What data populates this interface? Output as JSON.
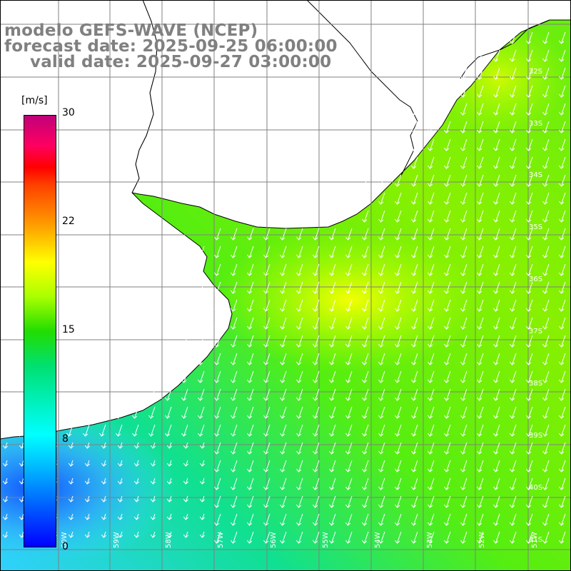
{
  "title": {
    "line1": "modelo GEFS-WAVE (NCEP)",
    "line2": "forecast date: 2025-09-25 06:00:00",
    "line3": "valid date: 2025-09-27 03:00:00"
  },
  "colorbar": {
    "unit": "[m/s]",
    "ticks": [
      "30",
      "22",
      "15",
      "8",
      "0"
    ],
    "tick_values": [
      30,
      22,
      15,
      8,
      0
    ],
    "min": 0,
    "max": 30,
    "colors": [
      "#0000ff",
      "#00c8ff",
      "#00ffff",
      "#00e070",
      "#22dd00",
      "#aaff00",
      "#ffff00",
      "#ff9900",
      "#ff4000",
      "#ff0000",
      "#c0007a"
    ]
  },
  "grid": {
    "lat_labels": [
      "32S",
      "33S",
      "34S",
      "35S",
      "36S",
      "37S",
      "38S",
      "39S",
      "40S",
      "41S"
    ],
    "lon_labels": [
      "60W",
      "59W",
      "58W",
      "57W",
      "56W",
      "55W",
      "54W",
      "53W",
      "52W",
      "51W"
    ]
  },
  "wind": {
    "direction": "north-northeast (arrows pointing south-southwest)",
    "speed_range_m_s": [
      1,
      16
    ]
  },
  "colors": {
    "land": "#ffffff",
    "coastline": "#000000",
    "grid": "#808080",
    "title": "#808080",
    "arrows": "#ffffff"
  }
}
